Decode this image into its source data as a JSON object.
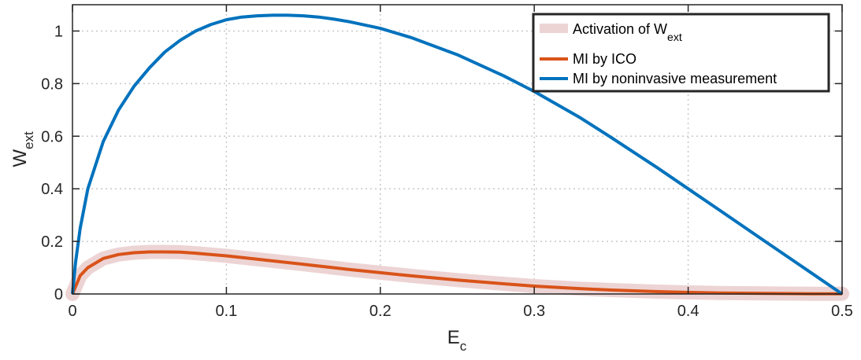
{
  "chart_data": {
    "type": "line",
    "xlabel": "E",
    "xlabel_sub": "c",
    "ylabel": "W",
    "ylabel_sub": "ext",
    "xlim": [
      0,
      0.5
    ],
    "ylim": [
      0,
      1.1
    ],
    "xticks": [
      0,
      0.1,
      0.2,
      0.3,
      0.4,
      0.5
    ],
    "xtick_labels": [
      "0",
      "0.1",
      "0.2",
      "0.3",
      "0.4",
      "0.5"
    ],
    "yticks": [
      0,
      0.2,
      0.4,
      0.6,
      0.8,
      1
    ],
    "ytick_labels": [
      "0",
      "0.2",
      "0.4",
      "0.6",
      "0.8",
      "1"
    ],
    "grid": true,
    "legend_position": "top-right",
    "legend": [
      {
        "text": "Activation of W",
        "sub": "ext",
        "style": "band",
        "color": "#edd4d4"
      },
      {
        "text": "MI by ICO",
        "sub": "",
        "style": "line",
        "color": "#d95319"
      },
      {
        "text": "MI by noninvasive measurement",
        "sub": "",
        "style": "line",
        "color": "#0072bd"
      }
    ],
    "series": [
      {
        "style": "band",
        "color": "#edd4d4",
        "x": [
          0,
          0.005,
          0.01,
          0.02,
          0.03,
          0.04,
          0.05,
          0.06,
          0.07,
          0.08,
          0.1,
          0.12,
          0.15,
          0.18,
          0.2,
          0.22,
          0.25,
          0.28,
          0.3,
          0.33,
          0.35,
          0.38,
          0.4,
          0.42,
          0.45,
          0.48,
          0.5
        ],
        "y": [
          0,
          0.07,
          0.1,
          0.135,
          0.15,
          0.157,
          0.16,
          0.16,
          0.159,
          0.155,
          0.145,
          0.132,
          0.113,
          0.093,
          0.081,
          0.069,
          0.053,
          0.039,
          0.03,
          0.02,
          0.015,
          0.009,
          0.006,
          0.004,
          0.002,
          0.001,
          0.001
        ]
      },
      {
        "style": "line",
        "color": "#d95319",
        "x": [
          0,
          0.005,
          0.01,
          0.02,
          0.03,
          0.04,
          0.05,
          0.06,
          0.07,
          0.08,
          0.1,
          0.12,
          0.15,
          0.18,
          0.2,
          0.22,
          0.25,
          0.28,
          0.3,
          0.33,
          0.35,
          0.38,
          0.4,
          0.42,
          0.45,
          0.48,
          0.5
        ],
        "y": [
          0,
          0.07,
          0.1,
          0.135,
          0.15,
          0.157,
          0.16,
          0.16,
          0.159,
          0.155,
          0.145,
          0.132,
          0.113,
          0.093,
          0.081,
          0.069,
          0.053,
          0.039,
          0.03,
          0.02,
          0.015,
          0.009,
          0.006,
          0.004,
          0.002,
          0.001,
          0.001
        ]
      },
      {
        "style": "line",
        "color": "#0072bd",
        "x": [
          0,
          0.002,
          0.005,
          0.01,
          0.02,
          0.03,
          0.04,
          0.05,
          0.06,
          0.07,
          0.08,
          0.09,
          0.1,
          0.11,
          0.12,
          0.13,
          0.14,
          0.15,
          0.16,
          0.17,
          0.18,
          0.2,
          0.22,
          0.25,
          0.28,
          0.3,
          0.33,
          0.35,
          0.38,
          0.4,
          0.42,
          0.45,
          0.48,
          0.5
        ],
        "y": [
          0,
          0.12,
          0.25,
          0.4,
          0.58,
          0.7,
          0.79,
          0.86,
          0.92,
          0.965,
          1.0,
          1.025,
          1.043,
          1.053,
          1.058,
          1.06,
          1.06,
          1.058,
          1.053,
          1.045,
          1.035,
          1.01,
          0.975,
          0.91,
          0.83,
          0.77,
          0.67,
          0.595,
          0.48,
          0.4,
          0.32,
          0.2,
          0.08,
          0.0
        ]
      }
    ]
  }
}
